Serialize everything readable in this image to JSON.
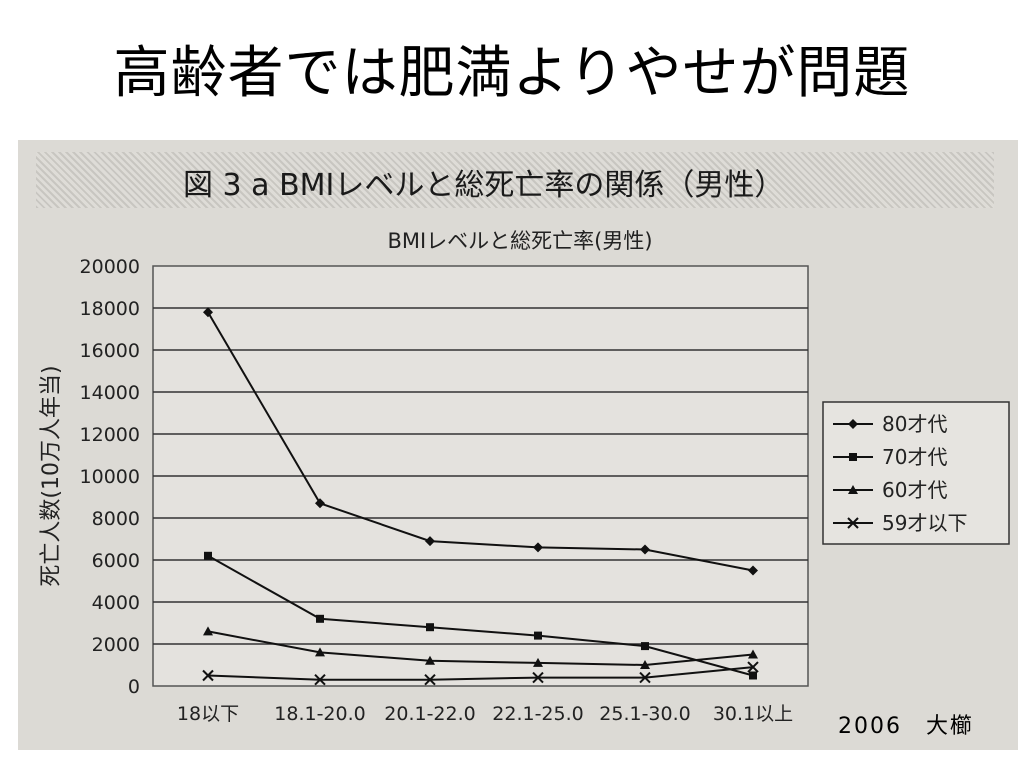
{
  "slide": {
    "title": "高齢者では肥満よりやせが問題",
    "figure_caption": "図 3 a BMIレベルと総死亡率の関係（男性）",
    "footer": "2006　大櫛"
  },
  "chart_data": {
    "type": "line",
    "title": "BMIレベルと総死亡率(男性)",
    "xlabel": "",
    "ylabel": "死亡人数(10万人年当)",
    "categories": [
      "18以下",
      "18.1-20.0",
      "20.1-22.0",
      "22.1-25.0",
      "25.1-30.0",
      "30.1以上"
    ],
    "ylim": [
      0,
      20000
    ],
    "yticks": [
      0,
      2000,
      4000,
      6000,
      8000,
      10000,
      12000,
      14000,
      16000,
      18000,
      20000
    ],
    "grid": true,
    "legend": "right",
    "series": [
      {
        "name": "80才代",
        "marker": "diamond",
        "values": [
          17800,
          8700,
          6900,
          6600,
          6500,
          5500
        ]
      },
      {
        "name": "70才代",
        "marker": "square",
        "values": [
          6200,
          3200,
          2800,
          2400,
          1900,
          500
        ]
      },
      {
        "name": "60才代",
        "marker": "triangle",
        "values": [
          2600,
          1600,
          1200,
          1100,
          1000,
          1500
        ]
      },
      {
        "name": "59才以下",
        "marker": "cross",
        "values": [
          500,
          300,
          300,
          400,
          400,
          900
        ]
      }
    ]
  }
}
